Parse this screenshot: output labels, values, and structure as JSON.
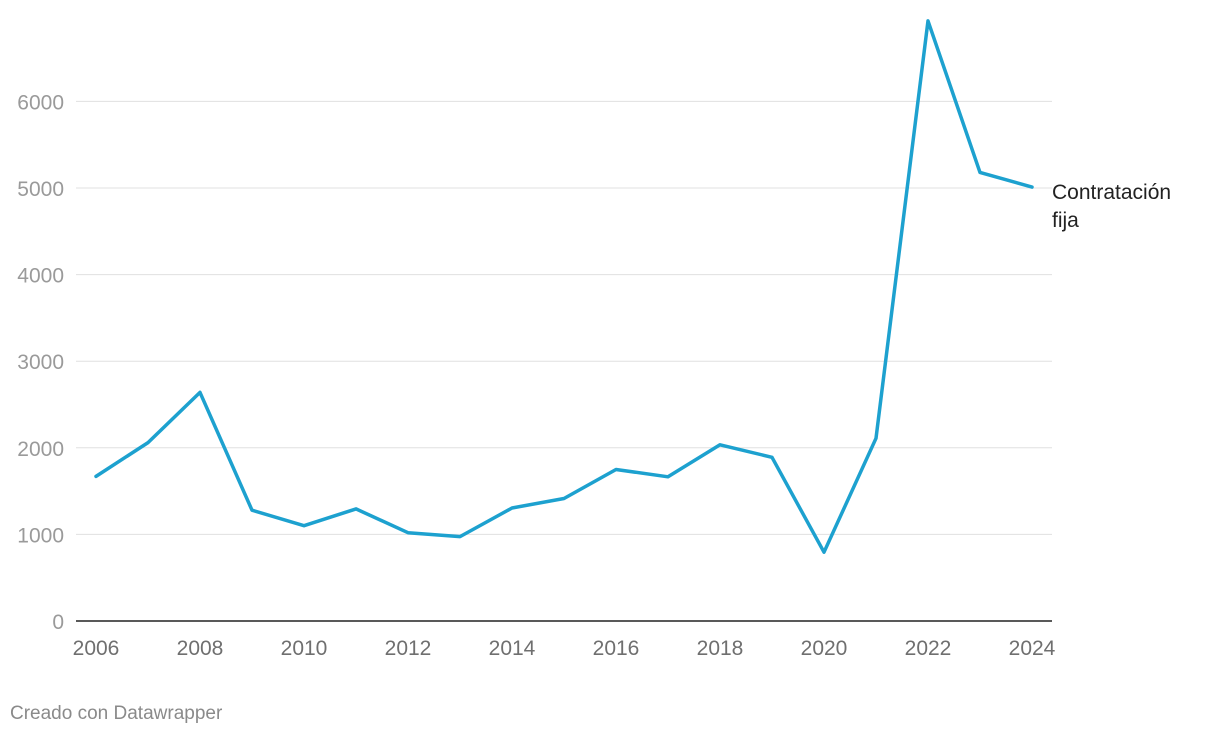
{
  "chart_data": {
    "type": "line",
    "title": "",
    "xlabel": "",
    "ylabel": "",
    "x": [
      2006,
      2007,
      2008,
      2009,
      2010,
      2011,
      2012,
      2013,
      2014,
      2015,
      2016,
      2017,
      2018,
      2019,
      2020,
      2021,
      2022,
      2023,
      2024
    ],
    "x_ticks": [
      "2006",
      "2008",
      "2010",
      "2012",
      "2014",
      "2016",
      "2018",
      "2020",
      "2022",
      "2024"
    ],
    "y_ticks": [
      "0",
      "1000",
      "2000",
      "3000",
      "4000",
      "5000",
      "6000"
    ],
    "xlim": [
      2006,
      2024
    ],
    "ylim": [
      0,
      6000
    ],
    "grid": true,
    "series": [
      {
        "name": "Contratación fija",
        "color": "#1da1cf",
        "values": [
          1670,
          2060,
          2640,
          1280,
          1100,
          1295,
          1020,
          975,
          1305,
          1415,
          1750,
          1665,
          2035,
          1890,
          795,
          2110,
          6930,
          5180,
          5010
        ]
      }
    ]
  },
  "footer": {
    "credit": "Creado con Datawrapper"
  }
}
